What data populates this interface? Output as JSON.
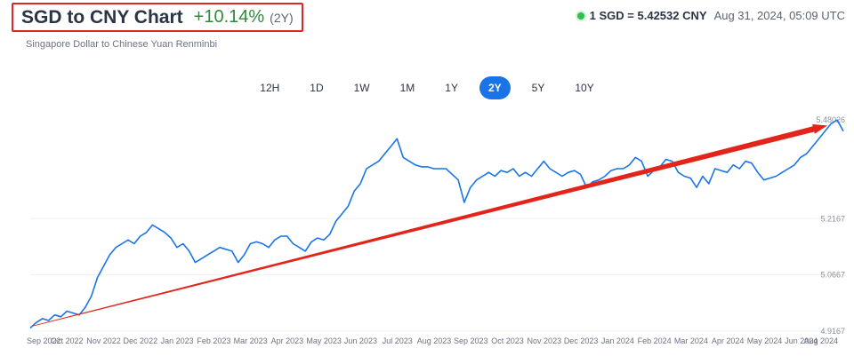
{
  "header": {
    "title": "SGD to CNY Chart",
    "change": "+10.14%",
    "period": "(2Y)",
    "subtitle": "Singapore Dollar to Chinese Yuan Renminbi"
  },
  "rate": {
    "text": "1 SGD = 5.42532 CNY",
    "timestamp": "Aug 31, 2024, 05:09 UTC",
    "status_color": "#2fbf4a"
  },
  "range_tabs": [
    {
      "label": "12H",
      "active": false
    },
    {
      "label": "1D",
      "active": false
    },
    {
      "label": "1W",
      "active": false
    },
    {
      "label": "1M",
      "active": false
    },
    {
      "label": "1Y",
      "active": false
    },
    {
      "label": "2Y",
      "active": true
    },
    {
      "label": "5Y",
      "active": false
    },
    {
      "label": "10Y",
      "active": false
    }
  ],
  "chart_data": {
    "type": "line",
    "series": [
      {
        "color": "#1a74e8",
        "values": [
          4.925,
          4.94,
          4.95,
          4.945,
          4.96,
          4.955,
          4.97,
          4.965,
          4.96,
          4.98,
          5.01,
          5.06,
          5.09,
          5.12,
          5.14,
          5.15,
          5.16,
          5.15,
          5.17,
          5.18,
          5.2,
          5.19,
          5.18,
          5.165,
          5.14,
          5.15,
          5.13,
          5.1,
          5.11,
          5.12,
          5.13,
          5.14,
          5.135,
          5.13,
          5.1,
          5.12,
          5.15,
          5.155,
          5.15,
          5.14,
          5.16,
          5.17,
          5.17,
          5.15,
          5.14,
          5.13,
          5.155,
          5.165,
          5.16,
          5.175,
          5.21,
          5.23,
          5.25,
          5.29,
          5.31,
          5.35,
          5.36,
          5.37,
          5.39,
          5.41,
          5.43,
          5.38,
          5.37,
          5.36,
          5.355,
          5.355,
          5.35,
          5.35,
          5.35,
          5.335,
          5.32,
          5.26,
          5.3,
          5.32,
          5.33,
          5.34,
          5.33,
          5.345,
          5.34,
          5.35,
          5.33,
          5.34,
          5.33,
          5.35,
          5.37,
          5.35,
          5.34,
          5.33,
          5.34,
          5.345,
          5.335,
          5.3,
          5.315,
          5.32,
          5.33,
          5.345,
          5.35,
          5.35,
          5.36,
          5.38,
          5.37,
          5.33,
          5.345,
          5.355,
          5.375,
          5.37,
          5.34,
          5.33,
          5.325,
          5.3,
          5.33,
          5.31,
          5.35,
          5.345,
          5.34,
          5.36,
          5.35,
          5.37,
          5.365,
          5.34,
          5.32,
          5.325,
          5.33,
          5.34,
          5.35,
          5.36,
          5.38,
          5.39,
          5.41,
          5.43,
          5.45,
          5.47,
          5.48,
          5.45
        ]
      }
    ],
    "x_labels": [
      "Sep 2022",
      "Oct 2022",
      "Nov 2022",
      "Dec 2022",
      "Jan 2023",
      "Feb 2023",
      "Mar 2023",
      "Apr 2023",
      "May 2023",
      "Jun 2023",
      "Jul 2023",
      "Aug 2023",
      "Sep 2023",
      "Oct 2023",
      "Nov 2023",
      "Dec 2023",
      "Jan 2024",
      "Feb 2024",
      "Mar 2024",
      "Apr 2024",
      "May 2024",
      "Jun 2024",
      "Aug 2024"
    ],
    "y_ticks": [
      "5.2167",
      "5.0667",
      "4.9167"
    ],
    "max_label": "5.48026",
    "ylim": [
      4.9167,
      5.48026
    ],
    "arrow": {
      "from": 4.93,
      "to": 5.465,
      "color": "#e3241b"
    }
  }
}
